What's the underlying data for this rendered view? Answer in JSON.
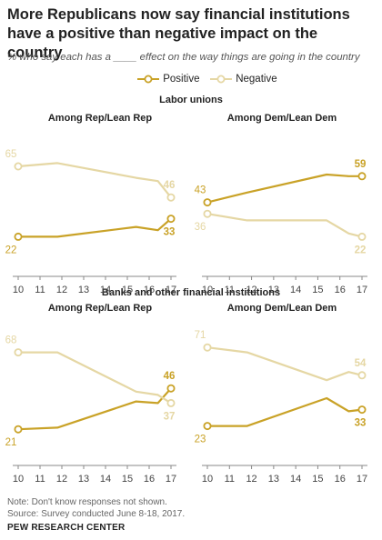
{
  "title": "More Republicans now say financial institutions have a positive than negative impact on the country",
  "subtitle": "% who say each has a ____ effect on the way things are going in the country",
  "legend": {
    "positive": "Positive",
    "negative": "Negative"
  },
  "colors": {
    "positive": "#c9a227",
    "negative": "#e5d7a4",
    "axis": "#888888"
  },
  "groups": [
    "Labor unions",
    "Banks and other financial institutions"
  ],
  "note": "Note: Don't know responses not shown.",
  "source": "Source: Survey conducted June 8-18, 2017.",
  "org": "PEW RESEARCH CENTER",
  "chart_data": [
    {
      "type": "line",
      "group": "Labor unions",
      "title": "Among Rep/Lean Rep",
      "x_ticks": [
        "10",
        "11",
        "12",
        "13",
        "14",
        "15",
        "16",
        "17"
      ],
      "ylim": [
        0,
        100
      ],
      "series": [
        {
          "name": "Positive",
          "x": [
            2010,
            2011.8,
            2015.4,
            2016.4,
            2017
          ],
          "values": [
            22,
            22,
            28,
            26,
            33
          ],
          "first_label": "22",
          "last_label": "33"
        },
        {
          "name": "Negative",
          "x": [
            2010,
            2011.8,
            2015.4,
            2016.4,
            2017
          ],
          "values": [
            65,
            67,
            58,
            56,
            46
          ],
          "first_label": "65",
          "last_label": "46"
        }
      ]
    },
    {
      "type": "line",
      "group": "Labor unions",
      "title": "Among Dem/Lean Dem",
      "x_ticks": [
        "10",
        "11",
        "12",
        "13",
        "14",
        "15",
        "16",
        "17"
      ],
      "ylim": [
        0,
        100
      ],
      "series": [
        {
          "name": "Positive",
          "x": [
            2010,
            2011.8,
            2015.4,
            2016.4,
            2017
          ],
          "values": [
            43,
            49,
            60,
            59,
            59
          ],
          "first_label": "43",
          "last_label": "59"
        },
        {
          "name": "Negative",
          "x": [
            2010,
            2011.8,
            2015.4,
            2016.4,
            2017
          ],
          "values": [
            36,
            32,
            32,
            24,
            22
          ],
          "first_label": "36",
          "last_label": "22"
        }
      ]
    },
    {
      "type": "line",
      "group": "Banks and other financial institutions",
      "title": "Among Rep/Lean Rep",
      "x_ticks": [
        "10",
        "11",
        "12",
        "13",
        "14",
        "15",
        "16",
        "17"
      ],
      "ylim": [
        0,
        100
      ],
      "series": [
        {
          "name": "Positive",
          "x": [
            2010,
            2011.8,
            2015.4,
            2016.4,
            2017
          ],
          "values": [
            21,
            22,
            38,
            37,
            46
          ],
          "first_label": "21",
          "last_label": "46"
        },
        {
          "name": "Negative",
          "x": [
            2010,
            2011.8,
            2015.4,
            2016.4,
            2017
          ],
          "values": [
            68,
            68,
            44,
            42,
            37
          ],
          "first_label": "68",
          "last_label": "37"
        }
      ]
    },
    {
      "type": "line",
      "group": "Banks and other financial institutions",
      "title": "Among Dem/Lean Dem",
      "x_ticks": [
        "10",
        "11",
        "12",
        "13",
        "14",
        "15",
        "16",
        "17"
      ],
      "ylim": [
        0,
        100
      ],
      "series": [
        {
          "name": "Positive",
          "x": [
            2010,
            2011.8,
            2015.4,
            2016.4,
            2017
          ],
          "values": [
            23,
            23,
            40,
            32,
            33
          ],
          "first_label": "23",
          "last_label": "33"
        },
        {
          "name": "Negative",
          "x": [
            2010,
            2011.8,
            2015.4,
            2016.4,
            2017
          ],
          "values": [
            71,
            68,
            51,
            56,
            54
          ],
          "first_label": "71",
          "last_label": "54"
        }
      ]
    }
  ]
}
